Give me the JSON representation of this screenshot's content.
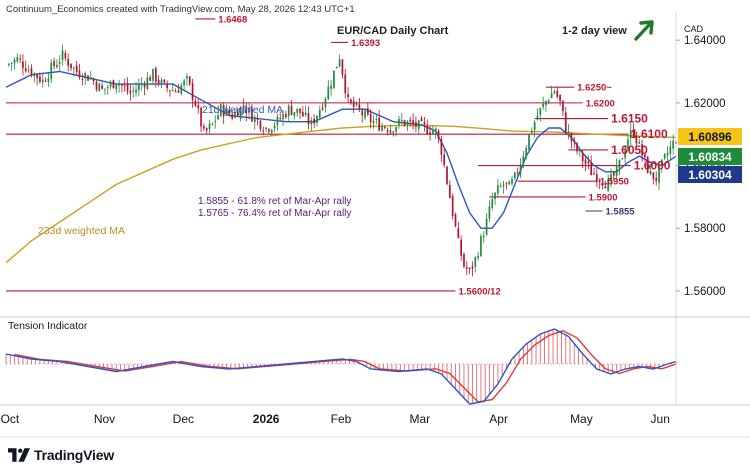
{
  "header": {
    "credit": "Continuum_Economics created with TradingView.com, May 28, 2026 12:43 UTC+1",
    "title": "EUR/CAD Daily Chart",
    "view": "1-2 day view",
    "currency": "CAD"
  },
  "branding": {
    "name": "TradingView"
  },
  "colors": {
    "candle_up": "#1f8a3a",
    "candle_down": "#b3122a",
    "ma21": "#2e56c8",
    "ma233": "#c9a227",
    "level_line": "#c0182f",
    "support_line": "#3b3b70",
    "osc_line": "#2e56c8",
    "osc_signal": "#e03b3b",
    "osc_hist": "#e46a6a",
    "arrow": "#1f7a2e",
    "badge_gold": "#f5c518",
    "badge_green": "#1f8a3a",
    "badge_navy": "#1e3a8a"
  },
  "chart_data": {
    "type": "candlestick",
    "title": "EUR/CAD Daily Chart",
    "x_ticks": [
      "Oct",
      "Nov",
      "Dec",
      "2026",
      "Feb",
      "Mar",
      "Apr",
      "May",
      "Jun"
    ],
    "y_ticks": [
      "1.64000",
      "1.62000",
      "1.60000",
      "1.58000",
      "1.56000"
    ],
    "ylim": [
      1.552,
      1.649
    ],
    "levels": [
      {
        "label": "1.6468",
        "value": 1.6468,
        "style": "resistance"
      },
      {
        "label": "1.6393",
        "value": 1.6393,
        "style": "resistance"
      },
      {
        "label": "1.6250~",
        "value": 1.625,
        "style": "resistance"
      },
      {
        "label": "1.6200",
        "value": 1.62,
        "style": "resistance"
      },
      {
        "label": "1.6150",
        "value": 1.615,
        "style": "resistance"
      },
      {
        "label": "1.6100",
        "value": 1.61,
        "style": "resistance"
      },
      {
        "label": "1.6050",
        "value": 1.605,
        "style": "support"
      },
      {
        "label": "1.6000",
        "value": 1.6,
        "style": "support"
      },
      {
        "label": "1.5950",
        "value": 1.595,
        "style": "support"
      },
      {
        "label": "1.5900",
        "value": 1.59,
        "style": "support"
      },
      {
        "label": "1.5855",
        "value": 1.5855,
        "style": "support"
      },
      {
        "label": "1.5600/12",
        "value": 1.56,
        "style": "support"
      }
    ],
    "annotations": [
      "21d weighted MA",
      "233d weighted MA",
      "1.5855 - 61.8% ret of Mar-Apr rally",
      "1.5765 - 76.4% ret of Mar-Apr rally"
    ],
    "price_badges": [
      {
        "label": "1.60896",
        "value": 1.60896,
        "color": "gold"
      },
      {
        "label": "1.60834",
        "value": 1.60834,
        "color": "green"
      },
      {
        "label": "1.60304",
        "value": 1.60304,
        "color": "navy"
      }
    ],
    "close_series": [
      [
        1,
        1.632
      ],
      [
        5,
        1.634
      ],
      [
        10,
        1.63
      ],
      [
        14,
        1.627
      ],
      [
        17,
        1.631
      ],
      [
        21,
        1.635
      ],
      [
        26,
        1.63
      ],
      [
        31,
        1.628
      ],
      [
        35,
        1.624
      ],
      [
        40,
        1.627
      ],
      [
        45,
        1.623
      ],
      [
        49,
        1.626
      ],
      [
        53,
        1.629
      ],
      [
        57,
        1.625
      ],
      [
        61,
        1.624
      ],
      [
        65,
        1.627
      ],
      [
        68,
        1.62
      ],
      [
        71,
        1.61
      ],
      [
        74,
        1.613
      ],
      [
        77,
        1.618
      ],
      [
        81,
        1.616
      ],
      [
        85,
        1.619
      ],
      [
        89,
        1.615
      ],
      [
        93,
        1.612
      ],
      [
        97,
        1.614
      ],
      [
        101,
        1.618
      ],
      [
        105,
        1.617
      ],
      [
        109,
        1.613
      ],
      [
        113,
        1.62
      ],
      [
        116,
        1.627
      ],
      [
        119,
        1.635
      ],
      [
        122,
        1.62
      ],
      [
        125,
        1.618
      ],
      [
        129,
        1.615
      ],
      [
        133,
        1.613
      ],
      [
        137,
        1.612
      ],
      [
        141,
        1.614
      ],
      [
        145,
        1.613
      ],
      [
        149,
        1.612
      ],
      [
        153,
        1.611
      ],
      [
        155,
        1.605
      ],
      [
        157,
        1.595
      ],
      [
        159,
        1.585
      ],
      [
        161,
        1.575
      ],
      [
        163,
        1.568
      ],
      [
        165,
        1.566
      ],
      [
        167,
        1.57
      ],
      [
        169,
        1.576
      ],
      [
        171,
        1.582
      ],
      [
        173,
        1.589
      ],
      [
        175,
        1.592
      ],
      [
        177,
        1.594
      ],
      [
        179,
        1.593
      ],
      [
        181,
        1.596
      ],
      [
        184,
        1.604
      ],
      [
        187,
        1.612
      ],
      [
        189,
        1.616
      ],
      [
        191,
        1.619
      ],
      [
        193,
        1.622
      ],
      [
        195,
        1.624
      ],
      [
        197,
        1.62
      ],
      [
        199,
        1.612
      ],
      [
        202,
        1.606
      ],
      [
        205,
        1.602
      ],
      [
        208,
        1.598
      ],
      [
        211,
        1.596
      ],
      [
        214,
        1.594
      ],
      [
        217,
        1.598
      ],
      [
        219,
        1.603
      ],
      [
        221,
        1.609
      ],
      [
        223,
        1.611
      ],
      [
        225,
        1.606
      ],
      [
        227,
        1.601
      ],
      [
        229,
        1.597
      ],
      [
        231,
        1.596
      ],
      [
        233,
        1.6
      ],
      [
        235,
        1.604
      ],
      [
        237,
        1.607
      ],
      [
        238,
        1.6083
      ]
    ],
    "ma21_series": [
      [
        1,
        1.625
      ],
      [
        10,
        1.629
      ],
      [
        20,
        1.63
      ],
      [
        30,
        1.628
      ],
      [
        40,
        1.626
      ],
      [
        50,
        1.626
      ],
      [
        60,
        1.626
      ],
      [
        70,
        1.621
      ],
      [
        80,
        1.616
      ],
      [
        90,
        1.615
      ],
      [
        100,
        1.614
      ],
      [
        110,
        1.614
      ],
      [
        120,
        1.618
      ],
      [
        128,
        1.618
      ],
      [
        138,
        1.614
      ],
      [
        148,
        1.613
      ],
      [
        153,
        1.611
      ],
      [
        157,
        1.604
      ],
      [
        161,
        1.594
      ],
      [
        165,
        1.585
      ],
      [
        169,
        1.58
      ],
      [
        173,
        1.58
      ],
      [
        177,
        1.585
      ],
      [
        181,
        1.594
      ],
      [
        185,
        1.603
      ],
      [
        189,
        1.609
      ],
      [
        193,
        1.612
      ],
      [
        197,
        1.612
      ],
      [
        201,
        1.609
      ],
      [
        205,
        1.604
      ],
      [
        209,
        1.6
      ],
      [
        213,
        1.598
      ],
      [
        217,
        1.598
      ],
      [
        221,
        1.601
      ],
      [
        225,
        1.603
      ],
      [
        229,
        1.601
      ],
      [
        233,
        1.6
      ],
      [
        238,
        1.603
      ]
    ],
    "ma233_series": [
      [
        1,
        1.569
      ],
      [
        10,
        1.576
      ],
      [
        20,
        1.582
      ],
      [
        30,
        1.588
      ],
      [
        40,
        1.594
      ],
      [
        50,
        1.598
      ],
      [
        60,
        1.602
      ],
      [
        70,
        1.605
      ],
      [
        80,
        1.607
      ],
      [
        90,
        1.609
      ],
      [
        100,
        1.61
      ],
      [
        110,
        1.611
      ],
      [
        120,
        1.612
      ],
      [
        130,
        1.6125
      ],
      [
        140,
        1.6128
      ],
      [
        150,
        1.6128
      ],
      [
        160,
        1.6125
      ],
      [
        170,
        1.6118
      ],
      [
        180,
        1.611
      ],
      [
        190,
        1.6108
      ],
      [
        200,
        1.6105
      ],
      [
        210,
        1.61
      ],
      [
        220,
        1.6096
      ],
      [
        230,
        1.6092
      ],
      [
        238,
        1.609
      ]
    ],
    "oscillator": {
      "title": "Tension Indicator",
      "main": [
        [
          1,
          4
        ],
        [
          10,
          2
        ],
        [
          20,
          1
        ],
        [
          30,
          -1
        ],
        [
          40,
          -3
        ],
        [
          50,
          -1
        ],
        [
          60,
          1
        ],
        [
          70,
          -1
        ],
        [
          80,
          -2
        ],
        [
          90,
          -1
        ],
        [
          100,
          0
        ],
        [
          110,
          1
        ],
        [
          120,
          2
        ],
        [
          125,
          1
        ],
        [
          130,
          -2
        ],
        [
          140,
          -3
        ],
        [
          150,
          -2
        ],
        [
          155,
          -4
        ],
        [
          160,
          -10
        ],
        [
          165,
          -16
        ],
        [
          170,
          -15
        ],
        [
          175,
          -8
        ],
        [
          180,
          2
        ],
        [
          185,
          8
        ],
        [
          190,
          12
        ],
        [
          195,
          14
        ],
        [
          200,
          11
        ],
        [
          205,
          4
        ],
        [
          210,
          -2
        ],
        [
          215,
          -4
        ],
        [
          220,
          -2
        ],
        [
          225,
          -1
        ],
        [
          230,
          -2
        ],
        [
          235,
          0
        ],
        [
          238,
          1
        ]
      ]
    }
  }
}
